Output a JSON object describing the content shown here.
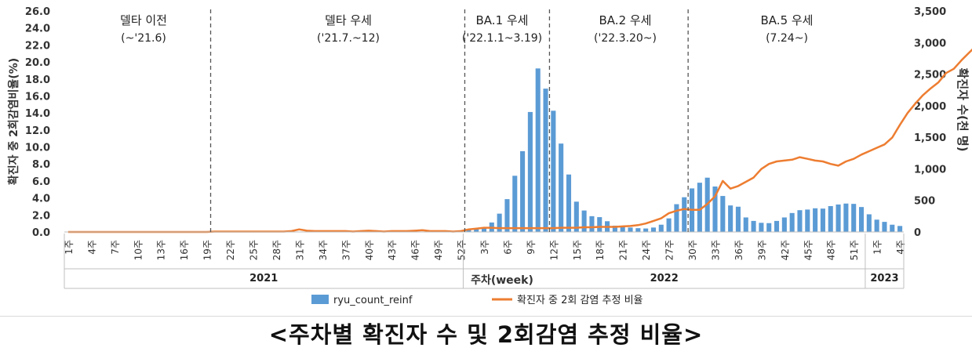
{
  "caption": "<주차별 확진자 수 및 2회감염 추정 비율>",
  "chart_data": {
    "type": "bar+line",
    "title": "",
    "y_left": {
      "label": "확진자 중 2회감염비율(%)",
      "min": 0,
      "max": 26,
      "ticks": [
        "0.0",
        "2.0",
        "4.0",
        "6.0",
        "8.0",
        "10.0",
        "12.0",
        "14.0",
        "16.0",
        "18.0",
        "20.0",
        "22.0",
        "24.0",
        "26.0"
      ]
    },
    "y_right": {
      "label": "확진자 수(천 명)",
      "min": 0,
      "max": 3500,
      "ticks": [
        "0",
        "500",
        "1,000",
        "1,500",
        "2,000",
        "2,500",
        "3,000",
        "3,500"
      ]
    },
    "x_axis_label": "주차(week)",
    "year_labels": [
      "2021",
      "2022",
      "2023"
    ],
    "week_tick_labels": {
      "y2021": [
        "1주",
        "4주",
        "7주",
        "10주",
        "13주",
        "16주",
        "19주",
        "22주",
        "25주",
        "28주",
        "31주",
        "34주",
        "37주",
        "40주",
        "43주",
        "46주",
        "49주",
        "52주"
      ],
      "y2022": [
        "3주",
        "6주",
        "9주",
        "12주",
        "15주",
        "18주",
        "21주",
        "24주",
        "27주",
        "30주",
        "33주",
        "36주",
        "39주",
        "42주",
        "45주",
        "48주",
        "51주"
      ],
      "y2023": [
        "1주",
        "4주"
      ]
    },
    "periods": [
      {
        "name": "델타 이전",
        "range": "(~'21.6)"
      },
      {
        "name": "델타 우세",
        "range": "('21.7.~12)"
      },
      {
        "name": "BA.1 우세",
        "range": "('22.1.1~3.19)"
      },
      {
        "name": "BA.2 우세",
        "range": "('22.3.20~)"
      },
      {
        "name": "BA.5 우세",
        "range": "(7.24~)"
      }
    ],
    "series": [
      {
        "name": "ryu_count_reinf",
        "type": "bar",
        "axis": "right",
        "color": "#5b9bd5",
        "values_2022_2023": [
          35,
          45,
          70,
          150,
          290,
          520,
          890,
          1280,
          1900,
          2590,
          2270,
          1920,
          1400,
          910,
          480,
          340,
          250,
          235,
          170,
          100,
          90,
          70,
          60,
          55,
          70,
          115,
          215,
          440,
          550,
          690,
          780,
          860,
          720,
          570,
          420,
          400,
          230,
          175,
          145,
          140,
          175,
          230,
          300,
          345,
          355,
          375,
          370,
          410,
          435,
          450,
          445,
          395,
          280,
          195,
          160,
          115,
          95
        ]
      },
      {
        "name": "확진자 중 2회 감염 추정 비율",
        "type": "line",
        "axis": "left",
        "color": "#ed7d31",
        "values": [
          0,
          0,
          0,
          0,
          0,
          0,
          0,
          0,
          0,
          0,
          0,
          0,
          0,
          0,
          0,
          0,
          0,
          0,
          0,
          0.05,
          0.05,
          0.05,
          0.05,
          0.05,
          0.05,
          0.05,
          0.05,
          0.05,
          0.05,
          0.1,
          0.3,
          0.15,
          0.1,
          0.1,
          0.1,
          0.1,
          0.1,
          0.05,
          0.1,
          0.15,
          0.1,
          0.05,
          0.1,
          0.1,
          0.1,
          0.15,
          0.2,
          0.1,
          0.1,
          0.1,
          0.05,
          0.1,
          0.3,
          0.4,
          0.5,
          0.5,
          0.45,
          0.45,
          0.45,
          0.45,
          0.45,
          0.45,
          0.45,
          0.45,
          0.5,
          0.5,
          0.5,
          0.55,
          0.55,
          0.6,
          0.6,
          0.6,
          0.65,
          0.7,
          0.8,
          1.0,
          1.3,
          1.6,
          2.2,
          2.5,
          2.7,
          2.6,
          2.6,
          3.3,
          4.2,
          6.0,
          5.1,
          5.4,
          5.9,
          6.4,
          7.4,
          8.0,
          8.3,
          8.4,
          8.5,
          8.8,
          8.6,
          8.4,
          8.3,
          8.0,
          7.8,
          8.3,
          8.6,
          9.1,
          9.5,
          9.9,
          10.3,
          11.1,
          12.6,
          14.0,
          15.1,
          16.1,
          16.9,
          17.6,
          18.7,
          19.2,
          20.2,
          21.1,
          22.0,
          22.5,
          23.6,
          24.5
        ]
      }
    ],
    "legend": "bottom"
  }
}
